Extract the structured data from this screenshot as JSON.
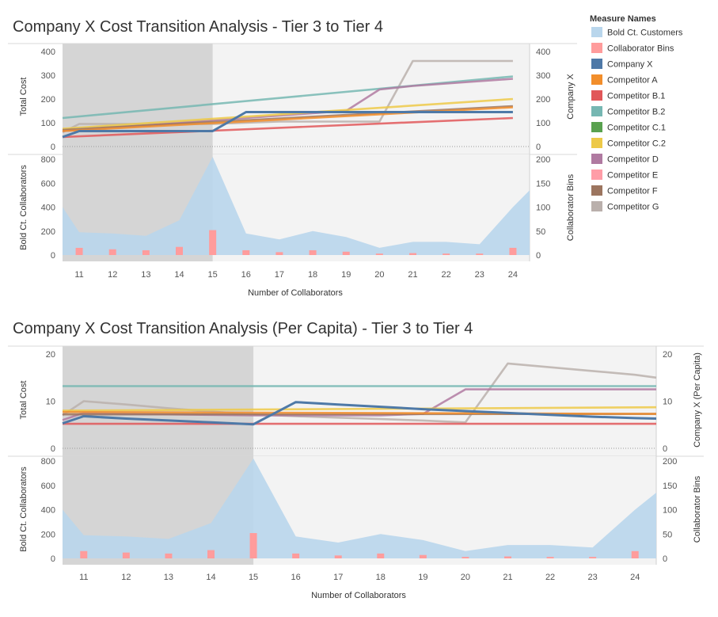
{
  "legend": {
    "title": "Measure Names",
    "items": [
      {
        "label": "Bold Ct. Customers",
        "color": "#b9d6ec"
      },
      {
        "label": "Collaborator Bins",
        "color": "#ff9c9c"
      },
      {
        "label": "Company X",
        "color": "#4e79a7"
      },
      {
        "label": "Competitor A",
        "color": "#f28e2b"
      },
      {
        "label": "Competitor B.1",
        "color": "#e15759"
      },
      {
        "label": "Competitor B.2",
        "color": "#76b7b2"
      },
      {
        "label": "Competitor C.1",
        "color": "#59a14f"
      },
      {
        "label": "Competitor C.2",
        "color": "#edc948"
      },
      {
        "label": "Competitor D",
        "color": "#b07aa1"
      },
      {
        "label": "Competitor E",
        "color": "#ff9da7"
      },
      {
        "label": "Competitor F",
        "color": "#9c755f"
      },
      {
        "label": "Competitor G",
        "color": "#bab0ac"
      }
    ]
  },
  "chart_data": [
    {
      "type": "line",
      "title": "Company X Cost Transition Analysis - Tier 3 to Tier 4",
      "xlabel": "Number of Collaborators",
      "categories": [
        "11",
        "12",
        "13",
        "14",
        "15",
        "16",
        "17",
        "18",
        "19",
        "20",
        "21",
        "22",
        "23",
        "24"
      ],
      "shaded_range": [
        "10.5",
        "15"
      ],
      "top_panel": {
        "ylabel_left": "Total Cost",
        "ylabel_right": "Company X",
        "ylim": [
          0,
          400
        ],
        "left_ticks": [
          "0",
          "100",
          "200",
          "300",
          "400"
        ],
        "right_ticks": [
          "0",
          "100",
          "200",
          "300",
          "400"
        ],
        "series": [
          {
            "name": "Competitor G",
            "color": "#bab0ac",
            "x": [
              10.5,
              11,
              12,
              13,
              14,
              15,
              16,
              17,
              18,
              19,
              20,
              21,
              22,
              23,
              24
            ],
            "values": [
              60,
              95,
              95,
              95,
              95,
              95,
              100,
              105,
              105,
              105,
              105,
              360,
              360,
              360,
              360
            ]
          },
          {
            "name": "Competitor B.2",
            "color": "#76b7b2",
            "x": [
              10.5,
              24
            ],
            "values": [
              120,
              295
            ]
          },
          {
            "name": "Competitor D",
            "color": "#b07aa1",
            "x": [
              10.5,
              11,
              12,
              13,
              14,
              15,
              16,
              17,
              18,
              19,
              20,
              21,
              22,
              23,
              24
            ],
            "values": [
              65,
              70,
              80,
              90,
              100,
              110,
              120,
              130,
              140,
              150,
              240,
              255,
              265,
              275,
              285
            ]
          },
          {
            "name": "Competitor C.2",
            "color": "#edc948",
            "x": [
              10.5,
              24
            ],
            "values": [
              75,
              200
            ]
          },
          {
            "name": "Competitor F",
            "color": "#9c755f",
            "x": [
              10.5,
              24
            ],
            "values": [
              70,
              170
            ]
          },
          {
            "name": "Competitor A",
            "color": "#f28e2b",
            "x": [
              10.5,
              24
            ],
            "values": [
              65,
              165
            ]
          },
          {
            "name": "Competitor B.1",
            "color": "#e15759",
            "x": [
              10.5,
              24
            ],
            "values": [
              40,
              120
            ]
          },
          {
            "name": "Company X",
            "color": "#4e79a7",
            "x": [
              10.5,
              11,
              12,
              13,
              14,
              15,
              16,
              17,
              18,
              19,
              20,
              21,
              22,
              23,
              24
            ],
            "values": [
              40,
              65,
              65,
              65,
              65,
              65,
              145,
              145,
              145,
              145,
              145,
              145,
              145,
              145,
              145
            ]
          }
        ]
      },
      "bottom_panel": {
        "ylabel_left": "Bold Ct. Collaborators",
        "ylabel_right": "Collaborator Bins",
        "left_ylim": [
          0,
          800
        ],
        "right_ylim": [
          0,
          200
        ],
        "left_ticks": [
          "0",
          "200",
          "400",
          "600",
          "800"
        ],
        "right_ticks": [
          "0",
          "50",
          "100",
          "150",
          "200"
        ],
        "area": {
          "name": "Bold Ct. Customers",
          "x": [
            10.5,
            11,
            12,
            13,
            14,
            15,
            16,
            17,
            18,
            19,
            20,
            21,
            22,
            23,
            24,
            24.5
          ],
          "values": [
            400,
            190,
            180,
            160,
            290,
            820,
            180,
            130,
            200,
            150,
            60,
            110,
            110,
            90,
            400,
            540
          ]
        },
        "bars": {
          "name": "Collaborator Bins",
          "values": [
            15,
            12,
            10,
            17,
            52,
            10,
            6,
            10,
            7,
            3,
            4,
            3,
            3,
            15
          ]
        }
      }
    },
    {
      "type": "line",
      "title": "Company X Cost Transition Analysis (Per Capita) - Tier 3 to Tier 4",
      "xlabel": "Number of Collaborators",
      "categories": [
        "11",
        "12",
        "13",
        "14",
        "15",
        "16",
        "17",
        "18",
        "19",
        "20",
        "21",
        "22",
        "23",
        "24"
      ],
      "shaded_range": [
        "10.5",
        "15"
      ],
      "top_panel": {
        "ylabel_left": "Total Cost",
        "ylabel_right": "Company X (Per Capita)",
        "ylim": [
          0,
          20
        ],
        "left_ticks": [
          "0",
          "10",
          "20"
        ],
        "right_ticks": [
          "0",
          "10",
          "20"
        ],
        "series": [
          {
            "name": "Competitor G",
            "color": "#bab0ac",
            "x": [
              10.5,
              11,
              12,
              13,
              14,
              15,
              16,
              17,
              18,
              19,
              20,
              21,
              22,
              23,
              24,
              24.5
            ],
            "values": [
              7,
              10,
              9.3,
              8.5,
              7.8,
              7.2,
              6.8,
              6.5,
              6.2,
              5.9,
              5.5,
              18,
              17.2,
              16.4,
              15.6,
              15
            ]
          },
          {
            "name": "Competitor B.2",
            "color": "#76b7b2",
            "x": [
              10.5,
              24.5
            ],
            "values": [
              13.2,
              13.2
            ]
          },
          {
            "name": "Competitor D",
            "color": "#b07aa1",
            "x": [
              10.5,
              11,
              12,
              13,
              14,
              15,
              16,
              17,
              18,
              19,
              20,
              21,
              22,
              23,
              24,
              24.5
            ],
            "values": [
              6,
              7.5,
              7.3,
              7.2,
              7.1,
              7,
              7,
              7,
              7,
              7.3,
              12.5,
              12.5,
              12.5,
              12.5,
              12.5,
              12.5
            ]
          },
          {
            "name": "Competitor C.2",
            "color": "#edc948",
            "x": [
              10.5,
              24.5
            ],
            "values": [
              8,
              8.7
            ]
          },
          {
            "name": "Competitor F",
            "color": "#9c755f",
            "x": [
              10.5,
              24.5
            ],
            "values": [
              7.2,
              7.3
            ]
          },
          {
            "name": "Competitor A",
            "color": "#f28e2b",
            "x": [
              10.5,
              24.5
            ],
            "values": [
              7.7,
              7.3
            ]
          },
          {
            "name": "Competitor B.1",
            "color": "#e15759",
            "x": [
              10.5,
              24.5
            ],
            "values": [
              5.2,
              5.2
            ]
          },
          {
            "name": "Company X",
            "color": "#4e79a7",
            "x": [
              10.5,
              11,
              12,
              13,
              14,
              15,
              16,
              17,
              18,
              19,
              20,
              21,
              22,
              23,
              24,
              24.5
            ],
            "values": [
              5.3,
              6.8,
              6.3,
              5.9,
              5.5,
              5.1,
              9.8,
              9.3,
              8.8,
              8.3,
              7.9,
              7.5,
              7.1,
              6.7,
              6.4,
              6.3
            ]
          }
        ]
      },
      "bottom_panel": {
        "ylabel_left": "Bold Ct. Collaborators",
        "ylabel_right": "Collaborator Bins",
        "left_ylim": [
          0,
          800
        ],
        "right_ylim": [
          0,
          200
        ],
        "left_ticks": [
          "0",
          "200",
          "400",
          "600",
          "800"
        ],
        "right_ticks": [
          "0",
          "50",
          "100",
          "150",
          "200"
        ],
        "area": {
          "name": "Bold Ct. Customers",
          "x": [
            10.5,
            11,
            12,
            13,
            14,
            15,
            16,
            17,
            18,
            19,
            20,
            21,
            22,
            23,
            24,
            24.5
          ],
          "values": [
            400,
            190,
            180,
            160,
            290,
            820,
            180,
            130,
            200,
            150,
            60,
            110,
            110,
            90,
            400,
            540
          ]
        },
        "bars": {
          "name": "Collaborator Bins",
          "values": [
            15,
            12,
            10,
            17,
            52,
            10,
            6,
            10,
            7,
            3,
            4,
            3,
            3,
            15
          ]
        }
      }
    }
  ]
}
